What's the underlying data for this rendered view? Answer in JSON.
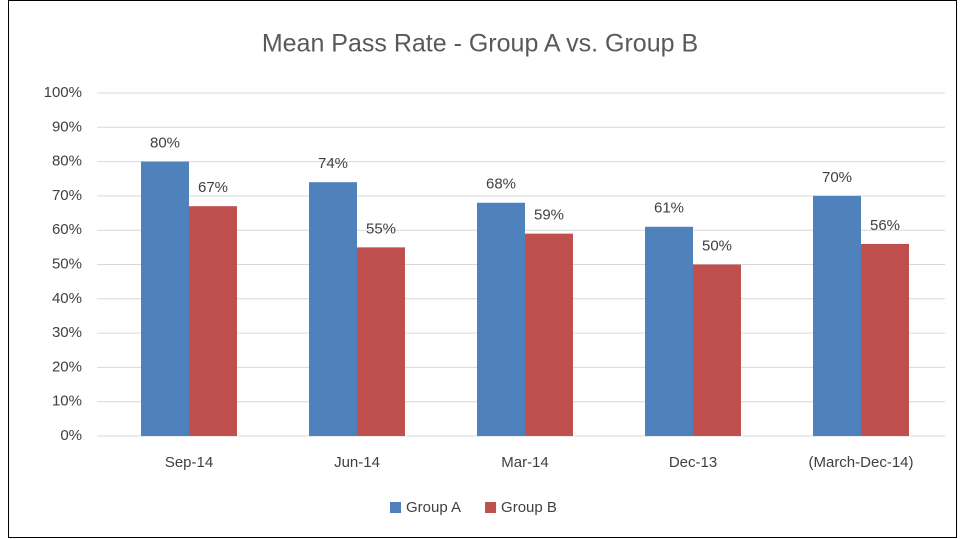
{
  "chart_data": {
    "type": "bar",
    "title": "Mean Pass Rate - Group A vs. Group B",
    "categories": [
      "Sep-14",
      "Jun-14",
      "Mar-14",
      "Dec-13",
      "(March-Dec-14)"
    ],
    "series": [
      {
        "name": "Group A",
        "color": "#4f81bd",
        "values": [
          80,
          74,
          68,
          61,
          70
        ],
        "value_labels": [
          "80%",
          "74%",
          "68%",
          "61%",
          "70%"
        ]
      },
      {
        "name": "Group B",
        "color": "#c0504d",
        "values": [
          67,
          55,
          59,
          50,
          56
        ],
        "value_labels": [
          "67%",
          "55%",
          "59%",
          "50%",
          "56%"
        ]
      }
    ],
    "ylim": [
      0,
      100
    ],
    "yticks": [
      {
        "value": 0,
        "label": "0%"
      },
      {
        "value": 10,
        "label": "10%"
      },
      {
        "value": 20,
        "label": "20%"
      },
      {
        "value": 30,
        "label": "30%"
      },
      {
        "value": 40,
        "label": "40%"
      },
      {
        "value": 50,
        "label": "50%"
      },
      {
        "value": 60,
        "label": "60%"
      },
      {
        "value": 70,
        "label": "70%"
      },
      {
        "value": 80,
        "label": "80%"
      },
      {
        "value": 90,
        "label": "90%"
      },
      {
        "value": 100,
        "label": "100%"
      }
    ],
    "grid": true,
    "legend": "bottom"
  }
}
